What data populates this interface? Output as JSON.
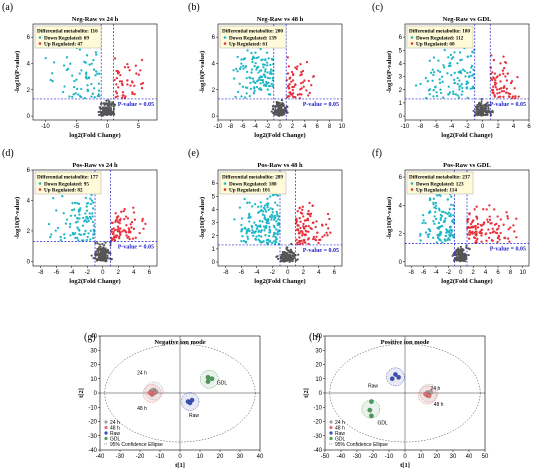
{
  "colors": {
    "down": "#1fb7c7",
    "up": "#e8303c",
    "ns": "#555555",
    "threshold": "#2222cc",
    "legend_bg": "#fffbd8",
    "raw": "#3a4fb8",
    "h24": "#a0a0a0",
    "h48": "#e06f6f",
    "gdl": "#4a9b5a"
  },
  "chart_data": [
    {
      "type": "scatter",
      "letter": "(a)",
      "title": "Neg-Raw vs 24 h",
      "xlabel": "log2(Fold Change)",
      "ylabel": "-log10(P-value)",
      "xlim": [
        -12,
        8
      ],
      "ylim": [
        -0.3,
        7
      ],
      "xticks": [
        -10,
        -5,
        0,
        5
      ],
      "yticks": [
        0,
        2,
        4,
        6
      ],
      "fc_threshold": [
        -1,
        1
      ],
      "p_line": 1.3,
      "p_label": "P-value = 0.05",
      "legend": {
        "title": "Differential metabolite: 116",
        "down": "Down Regulated: 69",
        "up": "Up Regulated: 47"
      },
      "counts": {
        "down": 69,
        "up": 47
      },
      "spread": {
        "xmin": -10.5,
        "xmax": 6.5,
        "ymax": 6.5
      }
    },
    {
      "type": "scatter",
      "letter": "(b)",
      "title": "Neg-Raw vs 48 h",
      "xlabel": "log2(Fold Change)",
      "ylabel": "-log10(P-value)",
      "xlim": [
        -10,
        10
      ],
      "ylim": [
        -0.3,
        7
      ],
      "xticks": [
        -10,
        -8,
        -6,
        -4,
        -2,
        0,
        2,
        4,
        6,
        8,
        10
      ],
      "yticks": [
        0,
        2,
        4,
        6
      ],
      "fc_threshold": [
        -1,
        1
      ],
      "p_line": 1.3,
      "p_label": "P-value = 0.05",
      "legend": {
        "title": "Differential metabolite: 200",
        "down": "Down Regulated: 139",
        "up": "Up Regulated: 61"
      },
      "counts": {
        "down": 139,
        "up": 61
      },
      "spread": {
        "xmin": -8,
        "xmax": 6,
        "ymax": 6.6
      }
    },
    {
      "type": "scatter",
      "letter": "(c)",
      "title": "Neg-Raw vs GDL",
      "xlabel": "log2(Fold Change)",
      "ylabel": "-log10(P-value)",
      "xlim": [
        -10,
        6
      ],
      "ylim": [
        -0.3,
        7
      ],
      "xticks": [
        -10,
        -8,
        -6,
        -4,
        -2,
        0,
        2,
        4,
        6
      ],
      "yticks": [
        0,
        1,
        2,
        3,
        4,
        5,
        6
      ],
      "fc_threshold": [
        -1,
        1
      ],
      "p_line": 1.3,
      "p_label": "P-value = 0.05",
      "legend": {
        "title": "Differential metabolite: 180",
        "down": "Down Regulated: 112",
        "up": "Up Regulated: 68"
      },
      "counts": {
        "down": 112,
        "up": 68
      },
      "spread": {
        "xmin": -9,
        "xmax": 5,
        "ymax": 6.4
      }
    },
    {
      "type": "scatter",
      "letter": "(d)",
      "title": "Pos-Raw vs 24 h",
      "xlabel": "log2(Fold Change)",
      "ylabel": "-log10(P-value)",
      "xlim": [
        -9,
        7
      ],
      "ylim": [
        -0.3,
        6
      ],
      "xticks": [
        -8,
        -6,
        -4,
        -2,
        0,
        2,
        4,
        6
      ],
      "yticks": [
        0,
        2,
        4,
        6
      ],
      "fc_threshold": [
        -1,
        1
      ],
      "p_line": 1.3,
      "p_label": "P-value = 0.05",
      "legend": {
        "title": "Differential metabolite: 177",
        "down": "Down Regulated: 95",
        "up": "Up Regulated: 82"
      },
      "counts": {
        "down": 95,
        "up": 82
      },
      "spread": {
        "xmin": -8,
        "xmax": 6,
        "ymax": 5.2
      }
    },
    {
      "type": "scatter",
      "letter": "(e)",
      "title": "Pos-Raw vs 48 h",
      "xlabel": "log2(Fold Change)",
      "ylabel": "-log10(P-value)",
      "xlim": [
        -9,
        7
      ],
      "ylim": [
        -0.3,
        7
      ],
      "xticks": [
        -8,
        -6,
        -4,
        -2,
        0,
        2,
        4,
        6
      ],
      "yticks": [
        0,
        1,
        2,
        3,
        4,
        5,
        6
      ],
      "fc_threshold": [
        -1,
        1
      ],
      "p_line": 1.3,
      "p_label": "P-value = 0.05",
      "legend": {
        "title": "Differential metabolite: 289",
        "down": "Down Regulated: 188",
        "up": "Up Regulated: 101"
      },
      "counts": {
        "down": 188,
        "up": 101
      },
      "spread": {
        "xmin": -7,
        "xmax": 6,
        "ymax": 6.5
      }
    },
    {
      "type": "scatter",
      "letter": "(f)",
      "title": "Pos-Raw vs GDL",
      "xlabel": "log2(Fold Change)",
      "ylabel": "-log10(P-value)",
      "xlim": [
        -9,
        11
      ],
      "ylim": [
        -0.3,
        6.5
      ],
      "xticks": [
        -8,
        -6,
        -4,
        -2,
        0,
        2,
        4,
        6,
        8,
        10
      ],
      "yticks": [
        0,
        2,
        4,
        6
      ],
      "fc_threshold": [
        -1,
        1
      ],
      "p_line": 1.3,
      "p_label": "P-value = 0.05",
      "legend": {
        "title": "Differential metabolite: 237",
        "down": "Down Regulated: 123",
        "up": "Up Regulated: 114"
      },
      "counts": {
        "down": 123,
        "up": 114
      },
      "spread": {
        "xmin": -8,
        "xmax": 10,
        "ymax": 5.6
      }
    },
    {
      "type": "scatter",
      "letter": "(g)",
      "title": "Negative ion mode",
      "xlabel": "t[1]",
      "ylabel": "t[2]",
      "xlim": [
        -40,
        40
      ],
      "ylim": [
        -40,
        40
      ],
      "xticks": [
        -40,
        -30,
        -20,
        -10,
        0,
        10,
        20,
        30,
        40
      ],
      "yticks": [
        -40,
        -30,
        -20,
        -10,
        0,
        10,
        20,
        30,
        40
      ],
      "ellipse_label": "95% Confidence Ellipse",
      "groups": [
        {
          "name": "24 h",
          "key": "h24",
          "points": [
            [
              -13,
              2
            ],
            [
              -12,
              0.8
            ],
            [
              -14,
              1.5
            ]
          ],
          "label": "24 h",
          "label_at": [
            -19,
            13
          ]
        },
        {
          "name": "48 h",
          "key": "h48",
          "points": [
            [
              -14,
              -1
            ],
            [
              -13,
              0
            ],
            [
              -15,
              0.2
            ]
          ],
          "label": "48 h",
          "label_at": [
            -19,
            -12
          ]
        },
        {
          "name": "Raw",
          "key": "raw",
          "points": [
            [
              4,
              -6
            ],
            [
              6,
              -5
            ],
            [
              5,
              -7
            ]
          ],
          "label": "Raw",
          "label_at": [
            7,
            -17
          ]
        },
        {
          "name": "GDL",
          "key": "gdl",
          "points": [
            [
              14,
              11
            ],
            [
              14,
              8
            ],
            [
              16,
              10
            ]
          ],
          "label": "GDL",
          "label_at": [
            21,
            6
          ]
        }
      ]
    },
    {
      "type": "scatter",
      "letter": "(h)",
      "title": "Positive ion mode",
      "xlabel": "t[1]",
      "ylabel": "t[2]",
      "xlim": [
        -50,
        50
      ],
      "ylim": [
        -40,
        40
      ],
      "xticks": [
        -50,
        -40,
        -30,
        -20,
        -10,
        0,
        10,
        20,
        30,
        40,
        50
      ],
      "yticks": [
        -40,
        -30,
        -20,
        -10,
        0,
        10,
        20,
        30,
        40
      ],
      "ellipse_label": "95% Confidence Ellipse",
      "groups": [
        {
          "name": "24 h",
          "key": "h24",
          "points": [
            [
              15,
              -1
            ],
            [
              16,
              0.5
            ],
            [
              14,
              0.2
            ]
          ],
          "label": "24 h",
          "label_at": [
            19,
            2
          ]
        },
        {
          "name": "48 h",
          "key": "h48",
          "points": [
            [
              14,
              -1.5
            ],
            [
              15,
              -2
            ],
            [
              13,
              -0.8
            ]
          ],
          "label": "48 h",
          "label_at": [
            21,
            -9
          ]
        },
        {
          "name": "Raw",
          "key": "raw",
          "points": [
            [
              -8,
              10
            ],
            [
              -6,
              13
            ],
            [
              -4,
              11
            ]
          ],
          "label": "Raw",
          "label_at": [
            -20,
            4
          ]
        },
        {
          "name": "GDL",
          "key": "gdl",
          "points": [
            [
              -21,
              -6
            ],
            [
              -22,
              -12
            ],
            [
              -21,
              -16
            ]
          ],
          "label": "GDL",
          "label_at": [
            -14,
            -22
          ]
        }
      ]
    }
  ]
}
